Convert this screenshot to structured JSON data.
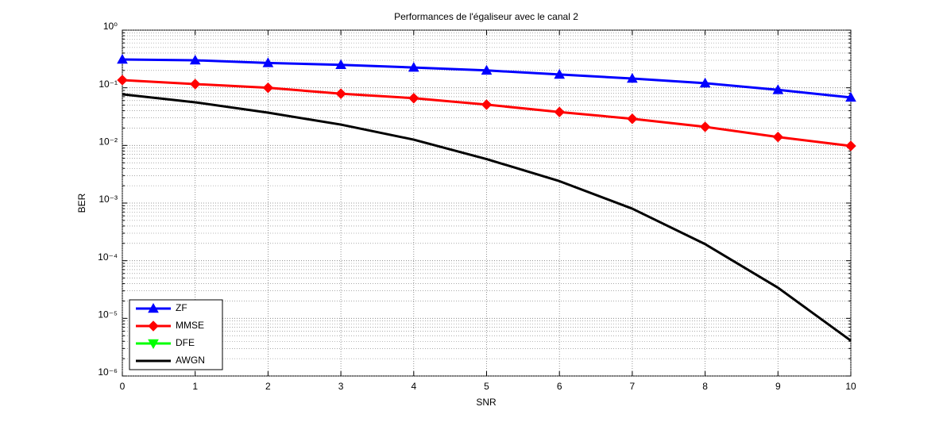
{
  "chart_data": {
    "type": "line",
    "title": "Performances de l'égaliseur avec le canal 2",
    "x_label": "SNR",
    "y_label": "BER",
    "x": [
      0,
      1,
      2,
      3,
      4,
      5,
      6,
      7,
      8,
      9,
      10
    ],
    "series": [
      {
        "name": "ZF",
        "color": "#0000ff",
        "marker": "triangle-up",
        "values": [
          0.31,
          0.3,
          0.27,
          0.25,
          0.225,
          0.2,
          0.17,
          0.145,
          0.12,
          0.092,
          0.068
        ]
      },
      {
        "name": "MMSE",
        "color": "#ff0000",
        "marker": "diamond",
        "values": [
          0.136,
          0.116,
          0.1,
          0.079,
          0.066,
          0.051,
          0.038,
          0.029,
          0.021,
          0.014,
          0.0098
        ]
      },
      {
        "name": "DFE",
        "color": "#00ff00",
        "marker": "triangle-down",
        "values": [
          null,
          null,
          null,
          null,
          null,
          null,
          null,
          null,
          null,
          null,
          null
        ]
      },
      {
        "name": "AWGN",
        "color": "#000000",
        "values": [
          0.077,
          0.056,
          0.037,
          0.023,
          0.0126,
          0.0058,
          0.0024,
          0.0008,
          0.000194,
          3.4e-05,
          4.1e-06
        ]
      }
    ],
    "xlim": [
      0,
      10
    ],
    "xticks": [
      0,
      1,
      2,
      3,
      4,
      5,
      6,
      7,
      8,
      9,
      10
    ],
    "ylim": [
      1e-06,
      1
    ],
    "y_scale": "log",
    "yticks": [
      {
        "value": 1e-06,
        "label": "10⁻⁶"
      },
      {
        "value": 1e-05,
        "label": "10⁻⁵"
      },
      {
        "value": 0.0001,
        "label": "10⁻⁴"
      },
      {
        "value": 0.001,
        "label": "10⁻³"
      },
      {
        "value": 0.01,
        "label": "10⁻²"
      },
      {
        "value": 0.1,
        "label": "10⁻¹"
      },
      {
        "value": 1,
        "label": "10⁰"
      }
    ],
    "grid": true,
    "legend_position": "lower left"
  }
}
